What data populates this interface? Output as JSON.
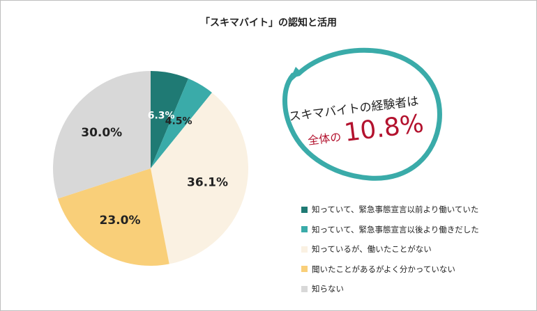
{
  "chart_data": {
    "type": "pie",
    "title": "「スキマバイト」の認知と活用",
    "categories": [
      "知っていて、緊急事態宣言以前より働いていた",
      "知っていて、緊急事態宣言以後より働きだした",
      "知っているが、働いたことがない",
      "聞いたことがあるがよく分かっていない",
      "知らない"
    ],
    "values": [
      6.3,
      4.5,
      36.1,
      23.0,
      30.0
    ],
    "value_labels": [
      "6.3%",
      "4.5%",
      "36.1%",
      "23.0%",
      "30.0%"
    ],
    "colors": [
      "#1f7a74",
      "#3aaba9",
      "#faf1e2",
      "#f9cf79",
      "#d8d8d8"
    ],
    "label_colors": [
      "#ffffff",
      "#222222",
      "#222222",
      "#222222",
      "#222222"
    ],
    "legend_position": "bottom-right"
  },
  "callout": {
    "line1": "スキマバイトの経験者は",
    "prefix": "全体の",
    "value": "10.8%",
    "border_color": "#3aaba9",
    "accent_color": "#b3122e"
  }
}
